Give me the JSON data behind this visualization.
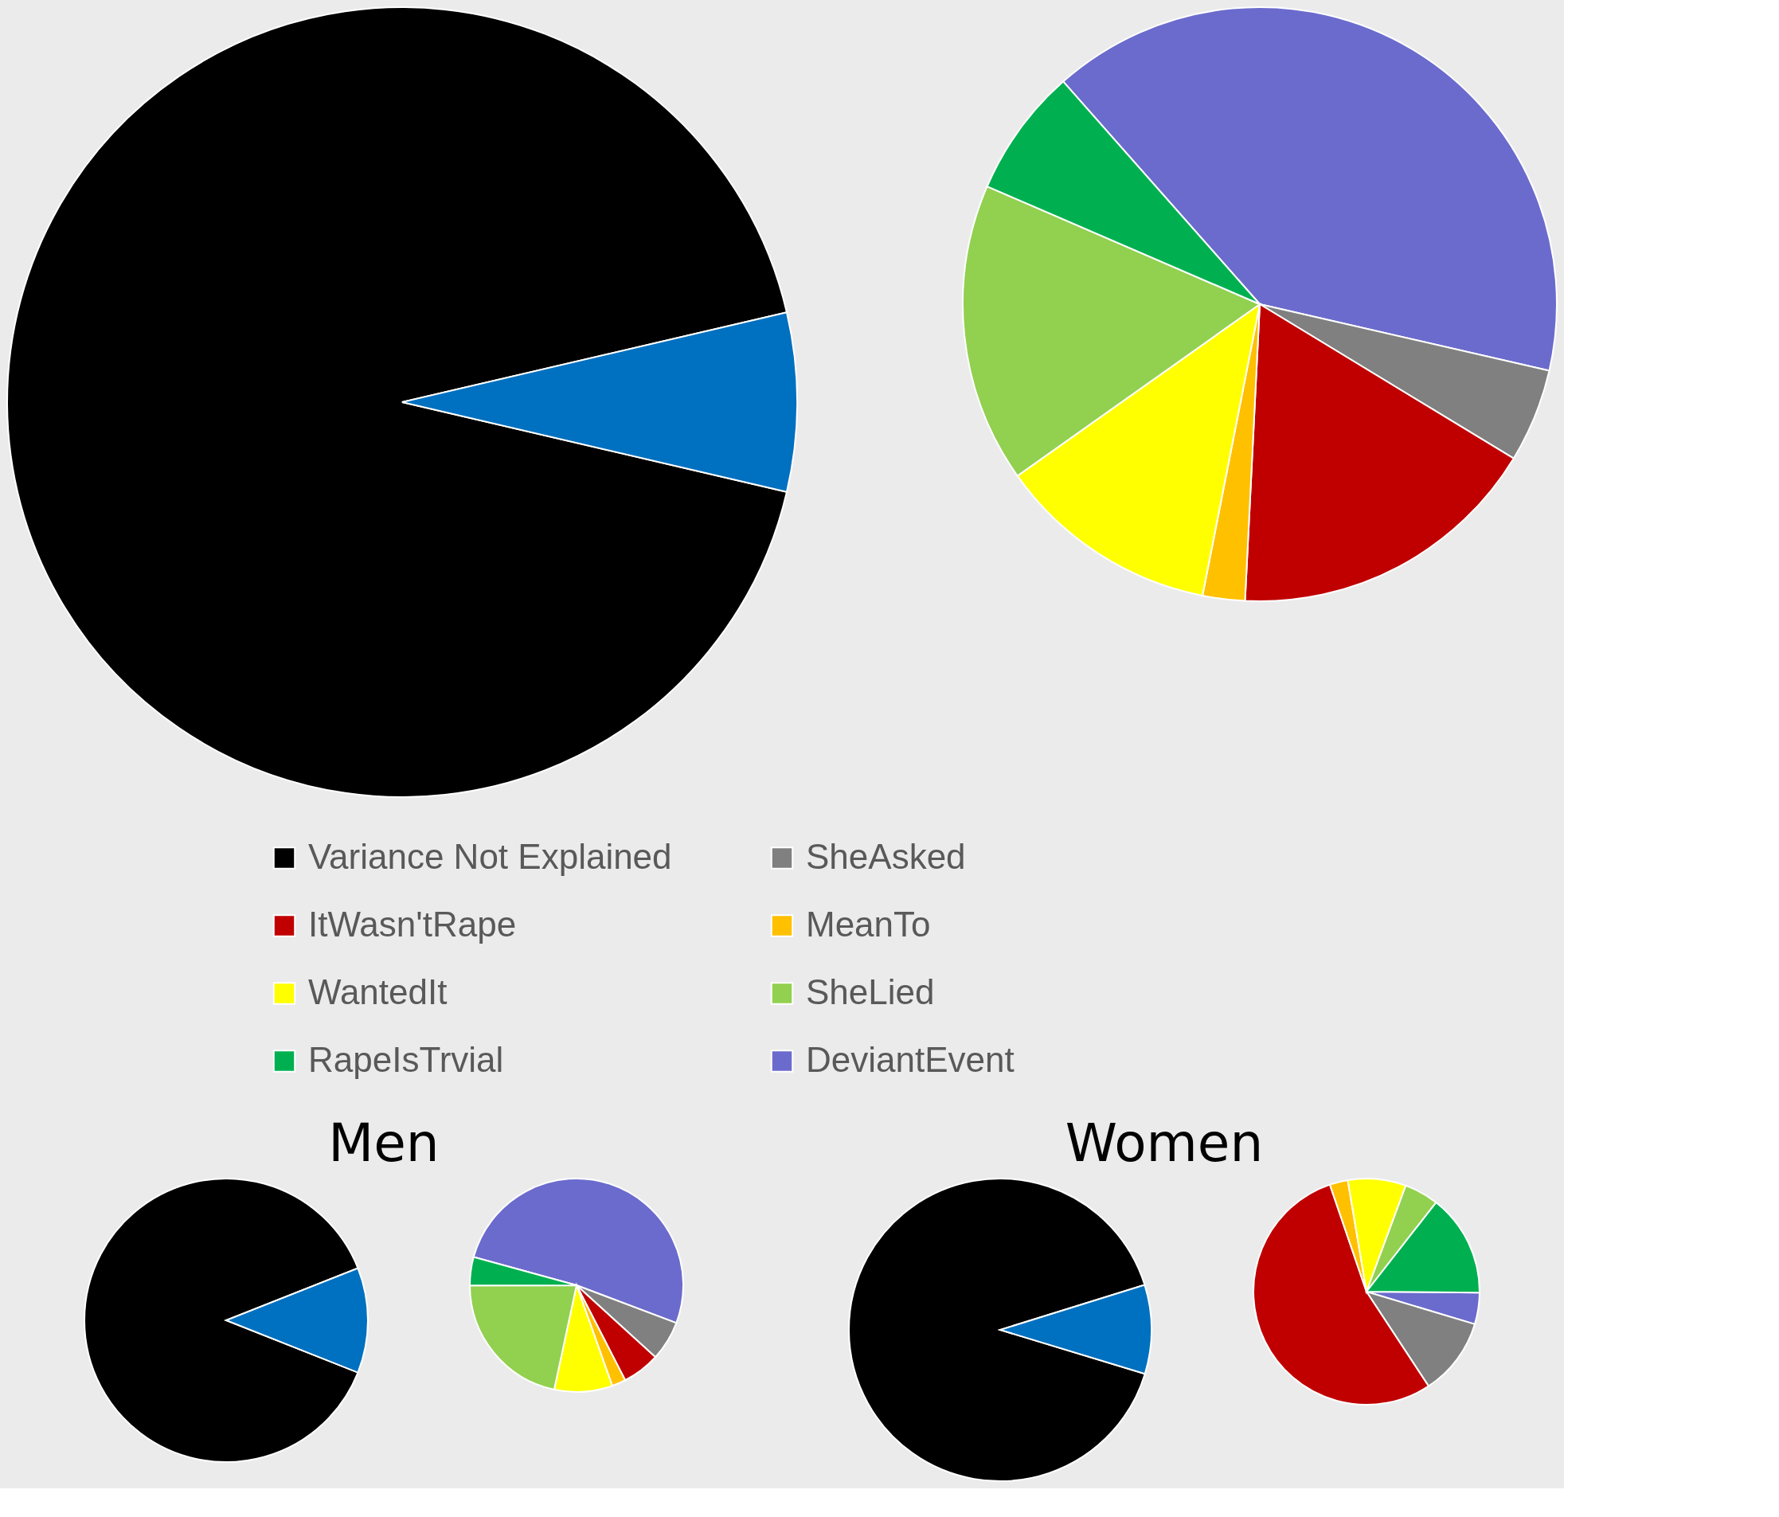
{
  "chart_data": [
    {
      "type": "pie",
      "categories": [
        "Variance Not Explained",
        null
      ],
      "values": [
        92.7,
        7.3
      ],
      "colors": [
        "#000000",
        "#0070c0"
      ],
      "legend": "bottom"
    },
    {
      "type": "pie",
      "categories": [
        "DeviantEvent",
        "SheAsked",
        "ItWasn'tRape",
        "MeanTo",
        "WantedIt",
        "SheLied",
        "RapeIsTrvial"
      ],
      "values": [
        40.1,
        5.1,
        17.1,
        2.3,
        12.1,
        16.3,
        7.0
      ],
      "colors": [
        "#6b6bcd",
        "#808080",
        "#c00000",
        "#ffc000",
        "#ffff00",
        "#92d050",
        "#00b050"
      ],
      "legend": "bottom"
    },
    {
      "type": "pie",
      "title": "Men",
      "categories": [
        null,
        null
      ],
      "values": [
        88.0,
        12.0
      ],
      "colors": [
        "#000000",
        "#0070c0"
      ]
    },
    {
      "type": "pie",
      "categories": [
        null,
        null,
        null,
        null,
        null,
        null,
        null
      ],
      "values": [
        51.5,
        6.0,
        5.7,
        2.1,
        8.8,
        21.6,
        4.3
      ],
      "colors": [
        "#6b6bcd",
        "#808080",
        "#c00000",
        "#ffc000",
        "#ffff00",
        "#92d050",
        "#00b050"
      ]
    },
    {
      "type": "pie",
      "title": "Women",
      "categories": [
        null,
        null
      ],
      "values": [
        90.5,
        9.5
      ],
      "colors": [
        "#000000",
        "#0070c0"
      ]
    },
    {
      "type": "pie",
      "categories": [
        null,
        null,
        null,
        null,
        null,
        null,
        null
      ],
      "values": [
        4.5,
        11.1,
        54.0,
        2.6,
        8.3,
        4.9,
        14.6
      ],
      "colors": [
        "#6b6bcd",
        "#808080",
        "#c00000",
        "#ffc000",
        "#ffff00",
        "#92d050",
        "#00b050"
      ]
    }
  ]
}
